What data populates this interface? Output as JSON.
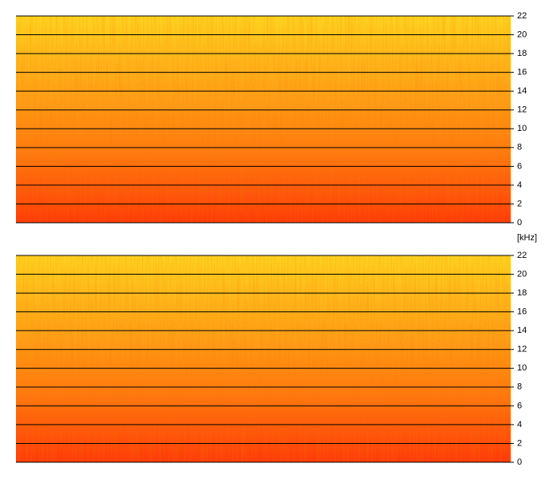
{
  "chart_data": [
    {
      "type": "spectrogram",
      "ylabel": "[kHz]",
      "ylim": [
        0,
        22
      ],
      "yticks": [
        0,
        2,
        4,
        6,
        8,
        10,
        12,
        14,
        16,
        18,
        20,
        22
      ],
      "grid": true,
      "colors": [
        "#ffd21a",
        "#ffa312",
        "#ff7a10",
        "#ff3a08"
      ]
    },
    {
      "type": "spectrogram",
      "ylim": [
        0,
        22
      ],
      "yticks": [
        0,
        2,
        4,
        6,
        8,
        10,
        12,
        14,
        16,
        18,
        20,
        22
      ],
      "grid": true,
      "colors": [
        "#ffd21a",
        "#ffa312",
        "#ff7a10",
        "#ff3a08"
      ]
    }
  ]
}
